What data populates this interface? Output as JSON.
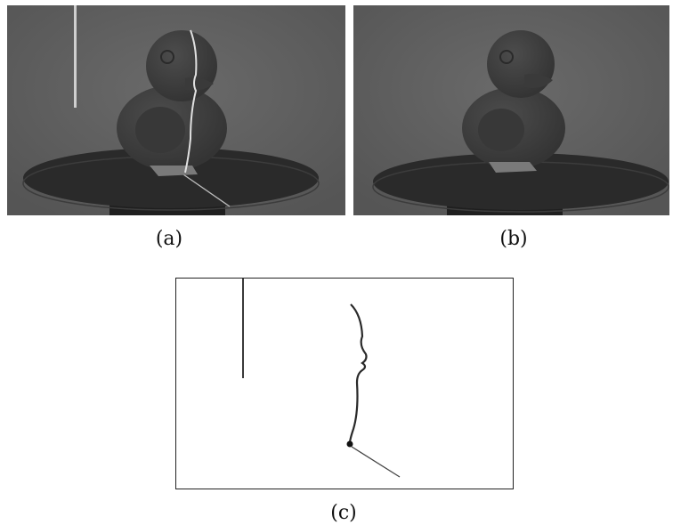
{
  "figure": {
    "panels": [
      {
        "id": "a",
        "caption": "(a)",
        "content": "duck-with-laser-line"
      },
      {
        "id": "b",
        "caption": "(b)",
        "content": "duck-without-laser"
      },
      {
        "id": "c",
        "caption": "(c)",
        "content": "difference-image-laser-profile"
      }
    ]
  },
  "colors": {
    "background_gray": "#5f5f5f",
    "duck": "#404040",
    "turntable": "#2a2a2a",
    "laser": "#d8d8d8",
    "difference_bg": "#ffffff",
    "difference_line": "#222222"
  }
}
